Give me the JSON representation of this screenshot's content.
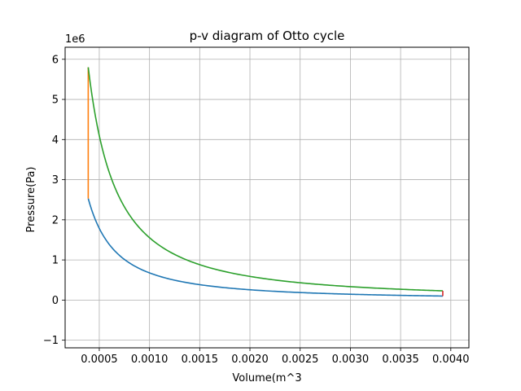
{
  "chart_data": {
    "type": "line",
    "title": "p-v diagram of Otto cycle",
    "xlabel": "Volume(m^3",
    "ylabel": "Pressure(Pa)",
    "y_scale_note": "1e6",
    "xlim": [
      0.00016,
      0.00418
    ],
    "ylim": [
      -1.19,
      6.3
    ],
    "y_units_factor": 1000000,
    "grid": true,
    "x_ticks": [
      {
        "value": 0.0005,
        "label": "0.0005"
      },
      {
        "value": 0.001,
        "label": "0.0010"
      },
      {
        "value": 0.0015,
        "label": "0.0015"
      },
      {
        "value": 0.002,
        "label": "0.0020"
      },
      {
        "value": 0.0025,
        "label": "0.0025"
      },
      {
        "value": 0.003,
        "label": "0.0030"
      },
      {
        "value": 0.0035,
        "label": "0.0035"
      },
      {
        "value": 0.004,
        "label": "0.0040"
      }
    ],
    "y_ticks": [
      {
        "value": -1,
        "label": "−1"
      },
      {
        "value": 0,
        "label": "0"
      },
      {
        "value": 1,
        "label": "1"
      },
      {
        "value": 2,
        "label": "2"
      },
      {
        "value": 3,
        "label": "3"
      },
      {
        "value": 4,
        "label": "4"
      },
      {
        "value": 5,
        "label": "5"
      },
      {
        "value": 6,
        "label": "6"
      }
    ],
    "series": [
      {
        "color": "#1f77b4",
        "x": [
          0.00039,
          0.0005,
          0.0006,
          0.0007,
          0.0008,
          0.001,
          0.0012,
          0.0015,
          0.0018,
          0.002,
          0.0025,
          0.003,
          0.0035,
          0.00392
        ],
        "y": [
          2.53,
          1.79,
          1.39,
          1.12,
          0.93,
          0.68,
          0.53,
          0.39,
          0.3,
          0.26,
          0.19,
          0.15,
          0.12,
          0.1
        ]
      },
      {
        "color": "#ff7f0e",
        "x": [
          0.00039,
          0.00039
        ],
        "y": [
          2.53,
          5.8
        ]
      },
      {
        "color": "#2ca02c",
        "x": [
          0.00039,
          0.0005,
          0.0006,
          0.0007,
          0.0008,
          0.001,
          0.0012,
          0.0015,
          0.0018,
          0.002,
          0.0025,
          0.003,
          0.0035,
          0.00392
        ],
        "y": [
          5.8,
          4.1,
          3.19,
          2.56,
          2.12,
          1.56,
          1.22,
          0.89,
          0.69,
          0.6,
          0.44,
          0.35,
          0.28,
          0.23
        ]
      },
      {
        "color": "#d62728",
        "x": [
          0.00392,
          0.00392
        ],
        "y": [
          0.23,
          0.1
        ]
      }
    ]
  }
}
